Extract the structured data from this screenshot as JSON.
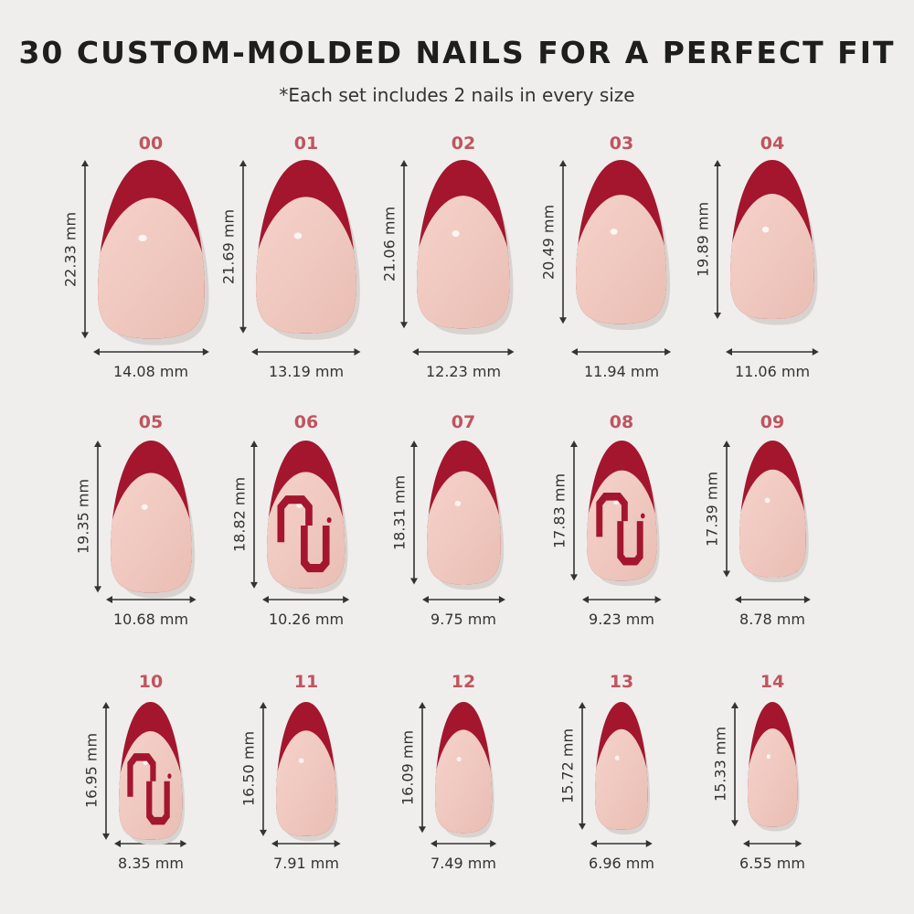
{
  "title": "30 CUSTOM-MOLDED NAILS FOR A PERFECT FIT",
  "subtitle": "*Each set includes 2 nails in every size",
  "colors": {
    "tip": "#a3162e",
    "base": "#f0c8bf",
    "label": "#c0545e",
    "background": "#efeeec"
  },
  "nails": [
    {
      "size": "00",
      "length": "22.33 mm",
      "width": "14.08 mm",
      "logo": false
    },
    {
      "size": "01",
      "length": "21.69 mm",
      "width": "13.19 mm",
      "logo": false
    },
    {
      "size": "02",
      "length": "21.06 mm",
      "width": "12.23 mm",
      "logo": false
    },
    {
      "size": "03",
      "length": "20.49 mm",
      "width": "11.94 mm",
      "logo": false
    },
    {
      "size": "04",
      "length": "19.89 mm",
      "width": "11.06 mm",
      "logo": false
    },
    {
      "size": "05",
      "length": "19.35 mm",
      "width": "10.68 mm",
      "logo": false
    },
    {
      "size": "06",
      "length": "18.82 mm",
      "width": "10.26 mm",
      "logo": true
    },
    {
      "size": "07",
      "length": "18.31 mm",
      "width": "9.75 mm",
      "logo": false
    },
    {
      "size": "08",
      "length": "17.83 mm",
      "width": "9.23 mm",
      "logo": true
    },
    {
      "size": "09",
      "length": "17.39 mm",
      "width": "8.78 mm",
      "logo": false
    },
    {
      "size": "10",
      "length": "16.95 mm",
      "width": "8.35 mm",
      "logo": true
    },
    {
      "size": "11",
      "length": "16.50 mm",
      "width": "7.91 mm",
      "logo": false
    },
    {
      "size": "12",
      "length": "16.09 mm",
      "width": "7.49 mm",
      "logo": false
    },
    {
      "size": "13",
      "length": "15.72 mm",
      "width": "6.96 mm",
      "logo": false
    },
    {
      "size": "14",
      "length": "15.33 mm",
      "width": "6.55 mm",
      "logo": false
    }
  ]
}
